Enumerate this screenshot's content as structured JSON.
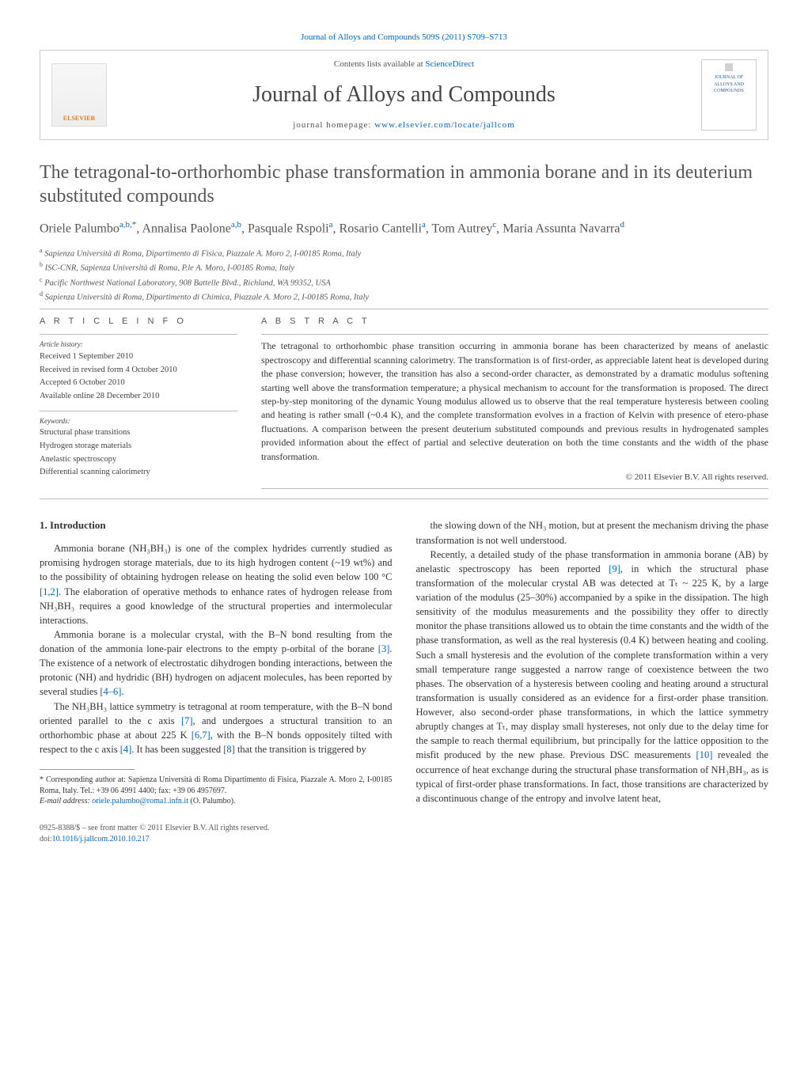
{
  "header": {
    "citation_line_prefix": "Journal of Alloys and Compounds 509S (2011) S709–S713",
    "contents_prefix": "Contents lists available at ",
    "contents_link": "ScienceDirect",
    "journal_title": "Journal of Alloys and Compounds",
    "homepage_prefix": "journal homepage: ",
    "homepage_link": "www.elsevier.com/locate/jallcom",
    "elsevier_label": "ELSEVIER",
    "cover_text": "JOURNAL OF ALLOYS AND COMPOUNDS"
  },
  "title": "The tetragonal-to-orthorhombic phase transformation in ammonia borane and in its deuterium substituted compounds",
  "authors_html": "Oriele Palumbo<span class='sup'>a,b,*</span>, Annalisa Paolone<span class='sup'>a,b</span>, Pasquale Rspoli<span class='sup'>a</span>, Rosario Cantelli<span class='sup'>a</span>, Tom Autrey<span class='sup'>c</span>, Maria Assunta Navarra<span class='sup'>d</span>",
  "affiliations": [
    "a Sapienza Università di Roma, Dipartimento di Fisica, Piazzale A. Moro 2, I-00185 Roma, Italy",
    "b ISC-CNR, Sapienza Università di Roma, P.le A. Moro, I-00185 Roma, Italy",
    "c Pacific Northwest National Laboratory, 908 Battelle Blvd., Richland, WA 99352, USA",
    "d Sapienza Università di Roma, Dipartimento di Chimica, Piazzale A. Moro 2, I-00185 Roma, Italy"
  ],
  "article_info": {
    "heading": "A R T I C L E   I N F O",
    "history_label": "Article history:",
    "history": [
      "Received 1 September 2010",
      "Received in revised form 4 October 2010",
      "Accepted 6 October 2010",
      "Available online 28 December 2010"
    ],
    "keywords_label": "Keywords:",
    "keywords": [
      "Structural phase transitions",
      "Hydrogen storage materials",
      "Anelastic spectroscopy",
      "Differential scanning calorimetry"
    ]
  },
  "abstract": {
    "heading": "A B S T R A C T",
    "text": "The tetragonal to orthorhombic phase transition occurring in ammonia borane has been characterized by means of anelastic spectroscopy and differential scanning calorimetry. The transformation is of first-order, as appreciable latent heat is developed during the phase conversion; however, the transition has also a second-order character, as demonstrated by a dramatic modulus softening starting well above the transformation temperature; a physical mechanism to account for the transformation is proposed. The direct step-by-step monitoring of the dynamic Young modulus allowed us to observe that the real temperature hysteresis between cooling and heating is rather small (~0.4 K), and the complete transformation evolves in a fraction of Kelvin with presence of etero-phase fluctuations. A comparison between the present deuterium substituted compounds and previous results in hydrogenated samples provided information about the effect of partial and selective deuteration on both the time constants and the width of the phase transformation.",
    "copyright": "© 2011 Elsevier B.V. All rights reserved."
  },
  "body": {
    "section_heading": "1. Introduction",
    "left_paragraphs": [
      "Ammonia borane (NH₃BH₃) is one of the complex hydrides currently studied as promising hydrogen storage materials, due to its high hydrogen content (~19 wt%) and to the possibility of obtaining hydrogen release on heating the solid even below 100 °C [1,2]. The elaboration of operative methods to enhance rates of hydrogen release from NH₃BH₃ requires a good knowledge of the structural properties and intermolecular interactions.",
      "Ammonia borane is a molecular crystal, with the B–N bond resulting from the donation of the ammonia lone-pair electrons to the empty p-orbital of the borane [3]. The existence of a network of electrostatic dihydrogen bonding interactions, between the protonic (NH) and hydridic (BH) hydrogen on adjacent molecules, has been reported by several studies [4–6].",
      "The NH₃BH₃ lattice symmetry is tetragonal at room temperature, with the B–N bond oriented parallel to the c axis [7], and undergoes a structural transition to an orthorhombic phase at about 225 K [6,7], with the B–N bonds oppositely tilted with respect to the c axis [4]. It has been suggested [8] that the transition is triggered by"
    ],
    "right_paragraphs": [
      "the slowing down of the NH₃ motion, but at present the mechanism driving the phase transformation is not well understood.",
      "Recently, a detailed study of the phase transformation in ammonia borane (AB) by anelastic spectroscopy has been reported [9], in which the structural phase transformation of the molecular crystal AB was detected at Tₜ ~ 225 K, by a large variation of the modulus (25–30%) accompanied by a spike in the dissipation. The high sensitivity of the modulus measurements and the possibility they offer to directly monitor the phase transitions allowed us to obtain the time constants and the width of the phase transformation, as well as the real hysteresis (0.4 K) between heating and cooling. Such a small hysteresis and the evolution of the complete transformation within a very small temperature range suggested a narrow range of coexistence between the two phases. The observation of a hysteresis between cooling and heating around a structural transformation is usually considered as an evidence for a first-order phase transition. However, also second-order phase transformations, in which the lattice symmetry abruptly changes at Tₜ, may display small hystereses, not only due to the delay time for the sample to reach thermal equilibrium, but principally for the lattice opposition to the misfit produced by the new phase. Previous DSC measurements [10] revealed the occurrence of heat exchange during the structural phase transformation of NH₃BH₃, as is typical of first-order phase transformations. In fact, those transitions are characterized by a discontinuous change of the entropy and involve latent heat,"
    ]
  },
  "footnote": {
    "text_prefix": "* Corresponding author at: Sapienza Università di Roma Dipartimento di Fisica, Piazzale A. Moro 2, I-00185 Roma, Italy. Tel.: +39 06 4991 4400; fax: +39 06 4957697.",
    "email_label": "E-mail address: ",
    "email": "oriele.palumbo@roma1.infn.it",
    "email_suffix": " (O. Palumbo)."
  },
  "footer": {
    "issn_line": "0925-8388/$ – see front matter © 2011 Elsevier B.V. All rights reserved.",
    "doi_label": "doi:",
    "doi": "10.1016/j.jallcom.2010.10.217"
  },
  "colors": {
    "link": "#0066cc",
    "heading": "#555555",
    "text": "#333333"
  }
}
